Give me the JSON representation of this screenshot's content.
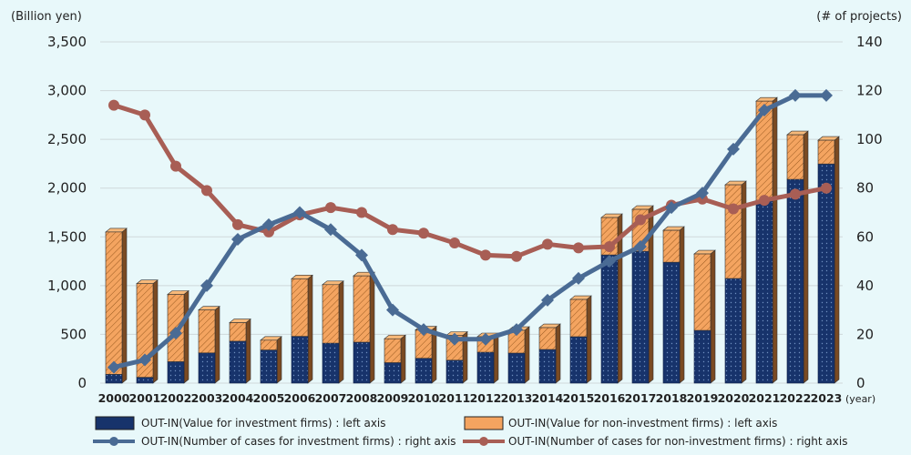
{
  "chart_data": {
    "type": "bar",
    "stacked": true,
    "left_axis_label": "(Billion yen)",
    "right_axis_label": "(# of projects)",
    "x_unit_label": "(year)",
    "categories": [
      "2000",
      "2001",
      "2002",
      "2003",
      "2004",
      "2005",
      "2006",
      "2007",
      "2008",
      "2009",
      "2010",
      "2011",
      "2012",
      "2013",
      "2014",
      "2015",
      "2016",
      "2017",
      "2018",
      "2019",
      "2020",
      "2021",
      "2022",
      "2023"
    ],
    "ylim_left": [
      0,
      3500
    ],
    "yticks_left": [
      "0",
      "500",
      "1,000",
      "1,500",
      "2,000",
      "2,500",
      "3,000",
      "3,500"
    ],
    "ylim_right": [
      0,
      140
    ],
    "yticks_right": [
      "0",
      "20",
      "40",
      "60",
      "80",
      "100",
      "120",
      "140"
    ],
    "grid": true,
    "legend_position": "bottom",
    "series": [
      {
        "name": "OUT-IN(Value for investment firms) : left axis",
        "kind": "bar",
        "axis": "left",
        "color": "#17336b",
        "values": [
          90,
          60,
          220,
          310,
          430,
          340,
          480,
          410,
          420,
          210,
          255,
          235,
          317,
          308,
          345,
          476,
          1315,
          1352,
          1240,
          541,
          1073,
          1875,
          2090,
          2248
        ]
      },
      {
        "name": "OUT-IN(Value for non-investment firms) : left axis",
        "kind": "bar",
        "axis": "left",
        "color": "#f4a460",
        "values": [
          1460,
          960,
          690,
          440,
          190,
          100,
          590,
          600,
          680,
          245,
          290,
          255,
          159,
          233,
          224,
          382,
          383,
          430,
          327,
          784,
          961,
          1017,
          457,
          243
        ]
      },
      {
        "name": "OUT-IN(Number of cases for investment firms) : right axis",
        "kind": "line",
        "axis": "right",
        "color": "#4a6b94",
        "values": [
          6.5,
          9.5,
          20.5,
          40,
          59,
          65,
          70,
          63,
          52.5,
          30,
          22,
          18,
          18,
          22,
          34,
          43,
          50,
          56,
          72,
          78,
          96,
          112,
          118,
          118
        ]
      },
      {
        "name": "OUT-IN(Number of cases for non-investment firms) : right axis",
        "kind": "line",
        "axis": "right",
        "color": "#a85e55",
        "values": [
          114,
          110,
          89,
          79,
          65,
          62,
          69,
          72,
          70,
          63,
          61.5,
          57.5,
          52.5,
          52,
          57,
          55.5,
          56,
          67,
          73,
          75.5,
          71.5,
          75,
          77.5,
          80
        ]
      }
    ]
  }
}
